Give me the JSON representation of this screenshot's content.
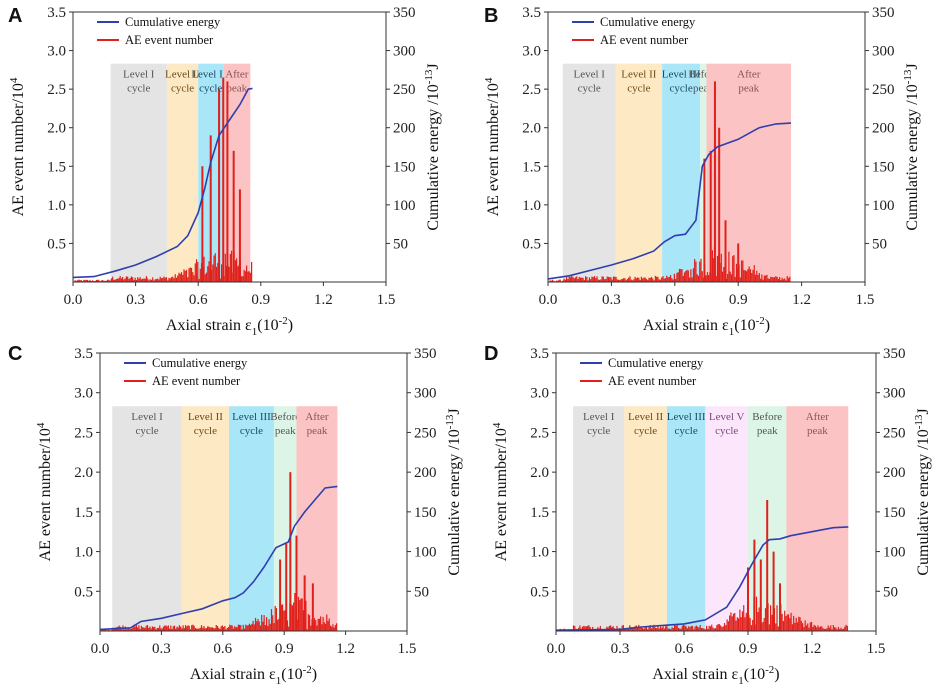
{
  "figure": {
    "xlabel_main": "Axial strain ε",
    "xlabel_sub": "1",
    "xlabel_unit": "(10",
    "xlabel_exp": "-2",
    "xlabel_close": ")",
    "ylabel_left": "AE event number/10",
    "ylabel_left_exp": "4",
    "ylabel_right": "Cumulative energy /10",
    "ylabel_right_exp": "-13",
    "ylabel_right_unit": "J",
    "legend_energy": "Cumulative energy",
    "legend_ae": "AE event number",
    "colors": {
      "energy": "#2f3fae",
      "ae": "#e0201b",
      "axis": "#333333"
    }
  },
  "chart_data": [
    {
      "panel": "A",
      "type": "line+bar",
      "x_ticks": [
        "0.0",
        "0.3",
        "0.6",
        "0.9",
        "1.2",
        "1.5"
      ],
      "y_left_ticks": [
        "0.5",
        "1.0",
        "1.5",
        "2.0",
        "2.5",
        "3.0",
        "3.5"
      ],
      "y_right_ticks": [
        "50",
        "100",
        "150",
        "200",
        "250",
        "300",
        "350"
      ],
      "xlim": [
        0,
        1.5
      ],
      "ylim_left": [
        0,
        3.5
      ],
      "ylim_right": [
        0,
        350
      ],
      "stages": [
        {
          "label1": "Level I",
          "label2": "cycle",
          "x0": 0.18,
          "x1": 0.45,
          "color": "#e4e4e4",
          "text": "#555555"
        },
        {
          "label1": "Level II",
          "label2": "cycle",
          "x0": 0.45,
          "x1": 0.6,
          "color": "#fde9c4",
          "text": "#6b4a15"
        },
        {
          "label1": "Level III",
          "label2": "cycle",
          "x0": 0.6,
          "x1": 0.72,
          "color": "#a9e6f8",
          "text": "#1b4a66"
        },
        {
          "label1": "After",
          "label2": "peak",
          "x0": 0.72,
          "x1": 0.85,
          "color": "#fbc3c3",
          "text": "#8a5454"
        }
      ],
      "energy": [
        [
          0,
          6
        ],
        [
          0.1,
          7
        ],
        [
          0.2,
          14
        ],
        [
          0.3,
          22
        ],
        [
          0.4,
          33
        ],
        [
          0.5,
          46
        ],
        [
          0.55,
          60
        ],
        [
          0.6,
          90
        ],
        [
          0.63,
          120
        ],
        [
          0.66,
          155
        ],
        [
          0.7,
          190
        ],
        [
          0.75,
          210
        ],
        [
          0.8,
          230
        ],
        [
          0.84,
          250
        ],
        [
          0.86,
          251
        ]
      ],
      "ae_peaks": [
        [
          0.62,
          1.5
        ],
        [
          0.66,
          1.9
        ],
        [
          0.7,
          2.5
        ],
        [
          0.72,
          2.65
        ],
        [
          0.74,
          2.6
        ],
        [
          0.77,
          1.7
        ],
        [
          0.8,
          1.2
        ]
      ]
    },
    {
      "panel": "B",
      "type": "line+bar",
      "x_ticks": [
        "0.0",
        "0.3",
        "0.6",
        "0.9",
        "1.2",
        "1.5"
      ],
      "y_left_ticks": [
        "0.5",
        "1.0",
        "1.5",
        "2.0",
        "2.5",
        "3.0",
        "3.5"
      ],
      "y_right_ticks": [
        "50",
        "100",
        "150",
        "200",
        "250",
        "300",
        "350"
      ],
      "xlim": [
        0,
        1.5
      ],
      "ylim_left": [
        0,
        3.5
      ],
      "ylim_right": [
        0,
        350
      ],
      "stages": [
        {
          "label1": "Level I",
          "label2": "cycle",
          "x0": 0.07,
          "x1": 0.32,
          "color": "#e4e4e4",
          "text": "#555555"
        },
        {
          "label1": "Level II",
          "label2": "cycle",
          "x0": 0.32,
          "x1": 0.54,
          "color": "#fde9c4",
          "text": "#6b4a15"
        },
        {
          "label1": "Level III",
          "label2": "cycle",
          "x0": 0.54,
          "x1": 0.72,
          "color": "#a9e6f8",
          "text": "#1b4a66"
        },
        {
          "label1": "Before",
          "label2": "peak",
          "x0": 0.72,
          "x1": 0.75,
          "color": "#ddf5e6",
          "text": "#555555"
        },
        {
          "label1": "After",
          "label2": "peak",
          "x0": 0.75,
          "x1": 1.15,
          "color": "#fbc3c3",
          "text": "#8a5454"
        }
      ],
      "energy": [
        [
          0,
          4
        ],
        [
          0.1,
          8
        ],
        [
          0.2,
          15
        ],
        [
          0.3,
          22
        ],
        [
          0.4,
          30
        ],
        [
          0.5,
          40
        ],
        [
          0.55,
          52
        ],
        [
          0.6,
          60
        ],
        [
          0.65,
          62
        ],
        [
          0.7,
          80
        ],
        [
          0.73,
          150
        ],
        [
          0.76,
          165
        ],
        [
          0.8,
          175
        ],
        [
          0.9,
          185
        ],
        [
          1.0,
          200
        ],
        [
          1.08,
          205
        ],
        [
          1.15,
          206
        ]
      ],
      "ae_peaks": [
        [
          0.74,
          1.6
        ],
        [
          0.77,
          1.7
        ],
        [
          0.79,
          2.6
        ],
        [
          0.81,
          2.0
        ],
        [
          0.84,
          0.8
        ],
        [
          0.9,
          0.5
        ]
      ]
    },
    {
      "panel": "C",
      "type": "line+bar",
      "x_ticks": [
        "0.0",
        "0.3",
        "0.6",
        "0.9",
        "1.2",
        "1.5"
      ],
      "y_left_ticks": [
        "0.5",
        "1.0",
        "1.5",
        "2.0",
        "2.5",
        "3.0",
        "3.5"
      ],
      "y_right_ticks": [
        "50",
        "100",
        "150",
        "200",
        "250",
        "300",
        "350"
      ],
      "xlim": [
        0,
        1.5
      ],
      "ylim_left": [
        0,
        3.5
      ],
      "ylim_right": [
        0,
        350
      ],
      "stages": [
        {
          "label1": "Level I",
          "label2": "cycle",
          "x0": 0.06,
          "x1": 0.4,
          "color": "#e4e4e4",
          "text": "#555555"
        },
        {
          "label1": "Level II",
          "label2": "cycle",
          "x0": 0.4,
          "x1": 0.63,
          "color": "#fde9c4",
          "text": "#6b4a15"
        },
        {
          "label1": "Level III",
          "label2": "cycle",
          "x0": 0.63,
          "x1": 0.85,
          "color": "#a9e6f8",
          "text": "#1b4a66"
        },
        {
          "label1": "Before",
          "label2": "peak",
          "x0": 0.85,
          "x1": 0.96,
          "color": "#ddf5e6",
          "text": "#555555"
        },
        {
          "label1": "After",
          "label2": "peak",
          "x0": 0.96,
          "x1": 1.16,
          "color": "#fbc3c3",
          "text": "#8a5454"
        }
      ],
      "energy": [
        [
          0,
          2
        ],
        [
          0.15,
          4
        ],
        [
          0.2,
          12
        ],
        [
          0.3,
          16
        ],
        [
          0.4,
          22
        ],
        [
          0.5,
          28
        ],
        [
          0.6,
          38
        ],
        [
          0.66,
          42
        ],
        [
          0.7,
          48
        ],
        [
          0.75,
          62
        ],
        [
          0.8,
          80
        ],
        [
          0.86,
          105
        ],
        [
          0.92,
          112
        ],
        [
          0.95,
          132
        ],
        [
          1.0,
          150
        ],
        [
          1.05,
          165
        ],
        [
          1.1,
          180
        ],
        [
          1.16,
          182
        ]
      ],
      "ae_peaks": [
        [
          0.88,
          0.9
        ],
        [
          0.91,
          1.1
        ],
        [
          0.93,
          2.0
        ],
        [
          0.96,
          1.2
        ],
        [
          1.0,
          0.7
        ],
        [
          1.04,
          0.6
        ]
      ]
    },
    {
      "panel": "D",
      "type": "line+bar",
      "x_ticks": [
        "0.0",
        "0.3",
        "0.6",
        "0.9",
        "1.2",
        "1.5"
      ],
      "y_left_ticks": [
        "0.5",
        "1.0",
        "1.5",
        "2.0",
        "2.5",
        "3.0",
        "3.5"
      ],
      "y_right_ticks": [
        "50",
        "100",
        "150",
        "200",
        "250",
        "300",
        "350"
      ],
      "xlim": [
        0,
        1.5
      ],
      "ylim_left": [
        0,
        3.5
      ],
      "ylim_right": [
        0,
        350
      ],
      "stages": [
        {
          "label1": "Level I",
          "label2": "cycle",
          "x0": 0.08,
          "x1": 0.32,
          "color": "#e4e4e4",
          "text": "#555555"
        },
        {
          "label1": "Level II",
          "label2": "cycle",
          "x0": 0.32,
          "x1": 0.52,
          "color": "#fde9c4",
          "text": "#6b4a15"
        },
        {
          "label1": "Level III",
          "label2": "cycle",
          "x0": 0.52,
          "x1": 0.7,
          "color": "#a9e6f8",
          "text": "#1b4a66"
        },
        {
          "label1": "Level V",
          "label2": "cycle",
          "x0": 0.7,
          "x1": 0.9,
          "color": "#fbe6fb",
          "text": "#7a4a7a"
        },
        {
          "label1": "Before",
          "label2": "peak",
          "x0": 0.9,
          "x1": 1.08,
          "color": "#ddf5e6",
          "text": "#555555"
        },
        {
          "label1": "After",
          "label2": "peak",
          "x0": 1.08,
          "x1": 1.37,
          "color": "#fbc3c3",
          "text": "#8a5454"
        }
      ],
      "energy": [
        [
          0,
          1
        ],
        [
          0.3,
          2
        ],
        [
          0.4,
          5
        ],
        [
          0.5,
          7
        ],
        [
          0.6,
          9
        ],
        [
          0.7,
          14
        ],
        [
          0.8,
          30
        ],
        [
          0.86,
          55
        ],
        [
          0.92,
          85
        ],
        [
          0.97,
          108
        ],
        [
          1.0,
          115
        ],
        [
          1.05,
          116
        ],
        [
          1.1,
          120
        ],
        [
          1.2,
          125
        ],
        [
          1.3,
          130
        ],
        [
          1.37,
          131
        ]
      ],
      "ae_peaks": [
        [
          0.9,
          0.8
        ],
        [
          0.93,
          1.15
        ],
        [
          0.96,
          0.9
        ],
        [
          0.99,
          1.65
        ],
        [
          1.02,
          1.0
        ],
        [
          1.05,
          0.6
        ]
      ]
    }
  ]
}
